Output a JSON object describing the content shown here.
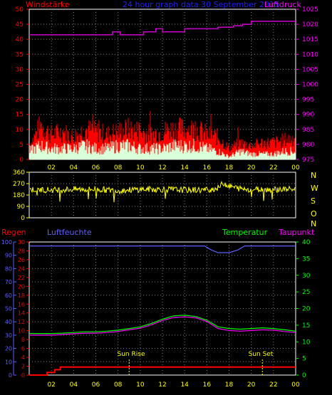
{
  "header": {
    "windstaerke_label": "Windstärke",
    "title": "24 hour graph data   30 September 2015",
    "luftdruck_label": "Luftdruck"
  },
  "colors": {
    "bg": "#000000",
    "frame": "#ffffff",
    "grid": "#808080",
    "wind_axis": "#ff0000",
    "pressure_axis": "#ff00ff",
    "pressure_line": "#cc00cc",
    "title": "#2020ff",
    "gust": "#ff0000",
    "avg_wind": "#d8ffd8",
    "direction": "#ffff00",
    "rain": "#ff0000",
    "humidity": "#6060ff",
    "temperature": "#00ff00",
    "dewpoint": "#ff00ff",
    "tick_labels": "#ffff00",
    "compass": "#ffff00",
    "sun_markers": "#ffff00"
  },
  "x_tick_labels": [
    "02",
    "04",
    "06",
    "08",
    "10",
    "12",
    "14",
    "16",
    "18",
    "20",
    "22",
    "00"
  ],
  "chart_data": [
    {
      "type": "line",
      "name": "wind-pressure",
      "x_range_hours": [
        0,
        24
      ],
      "x_tick_labels": [
        "02",
        "04",
        "06",
        "08",
        "10",
        "12",
        "14",
        "16",
        "18",
        "20",
        "22",
        "00"
      ],
      "wind_axis": {
        "ylim": [
          0,
          50
        ],
        "ticks": [
          0,
          5,
          10,
          15,
          20,
          25,
          30,
          35,
          40,
          45,
          50
        ]
      },
      "pressure_axis": {
        "ylim": [
          975,
          1025
        ],
        "ticks": [
          975,
          980,
          985,
          990,
          995,
          1000,
          1005,
          1010,
          1015,
          1020,
          1025
        ]
      },
      "series": [
        {
          "name": "Luftdruck",
          "axis": "pressure",
          "x": [
            0,
            7.5,
            7.5,
            8.2,
            8.2,
            10.3,
            10.3,
            11.4,
            11.4,
            12.0,
            12.0,
            14.0,
            14.0,
            17.0,
            17.0,
            18.4,
            18.4,
            19.2,
            19.2,
            20.0,
            20.0,
            24
          ],
          "y": [
            1016.5,
            1016.5,
            1017.5,
            1017.5,
            1016.5,
            1016.5,
            1017.5,
            1017.5,
            1018.5,
            1018.5,
            1017.5,
            1017.5,
            1018.5,
            1018.5,
            1019.0,
            1019.0,
            1019.5,
            1019.5,
            1020.0,
            1020.0,
            1021.0,
            1021.0
          ]
        },
        {
          "name": "gust",
          "axis": "wind",
          "x": [
            0,
            1,
            2,
            3,
            4,
            5,
            6,
            7,
            8,
            9,
            10,
            11,
            12,
            13,
            14,
            15,
            16,
            17,
            18,
            19,
            20,
            21,
            22,
            23,
            24
          ],
          "y": [
            5,
            12,
            9,
            10,
            8,
            11,
            10,
            9,
            10,
            11,
            10,
            9,
            10,
            11,
            11,
            11,
            9,
            8,
            4,
            6,
            5,
            6,
            6,
            7,
            8
          ]
        },
        {
          "name": "avg",
          "axis": "wind",
          "x": [
            0,
            1,
            2,
            3,
            4,
            5,
            6,
            7,
            8,
            9,
            10,
            11,
            12,
            13,
            14,
            15,
            16,
            17,
            18,
            19,
            20,
            21,
            22,
            23,
            24
          ],
          "y": [
            3,
            5,
            4,
            4,
            4,
            5,
            4,
            4,
            5,
            5,
            4,
            4,
            4,
            5,
            5,
            5,
            4,
            3,
            1,
            3,
            2,
            2,
            2,
            3,
            3
          ]
        }
      ]
    },
    {
      "type": "line",
      "name": "wind-direction",
      "x_range_hours": [
        0,
        24
      ],
      "ylim": [
        0,
        360
      ],
      "y_ticks": [
        0,
        90,
        180,
        270,
        360
      ],
      "compass_labels": [
        "N",
        "W",
        "S",
        "O",
        "N"
      ],
      "series": [
        {
          "name": "direction",
          "x": [
            0,
            2,
            4,
            6,
            8,
            10,
            12,
            14,
            16,
            17,
            17.5,
            18,
            19,
            20,
            22,
            24
          ],
          "y": [
            225,
            220,
            225,
            225,
            215,
            225,
            225,
            220,
            220,
            235,
            275,
            250,
            230,
            225,
            225,
            225
          ]
        }
      ]
    },
    {
      "type": "line",
      "name": "rain-humidity-temperature",
      "x_range_hours": [
        0,
        24
      ],
      "left_label": "Regen",
      "humidity_label": "Luftfeuchte",
      "temperature_label": "Temperatur",
      "dewpoint_label": "Taupunkt",
      "rain_axis": {
        "ylim": [
          0,
          30
        ],
        "ticks": [
          0,
          2,
          4,
          6,
          8,
          10,
          12,
          14,
          16,
          18,
          20,
          22,
          24,
          26,
          28,
          30
        ]
      },
      "humidity_axis": {
        "ylim": [
          0,
          100
        ],
        "ticks": [
          0,
          10,
          20,
          30,
          40,
          50,
          60,
          70,
          80,
          90,
          100
        ]
      },
      "temperature_axis": {
        "ylim": [
          0,
          40
        ],
        "ticks": [
          0,
          5,
          10,
          15,
          20,
          25,
          30,
          35,
          40
        ]
      },
      "series": [
        {
          "name": "Luftfeuchte",
          "axis": "humidity",
          "x": [
            0,
            15.8,
            16.4,
            17.0,
            18.0,
            18.8,
            19.4,
            24
          ],
          "y": [
            97,
            97,
            94,
            92,
            92,
            94,
            97,
            97
          ]
        },
        {
          "name": "Temperatur",
          "axis": "temperature",
          "x": [
            0,
            1,
            2,
            3,
            4,
            5,
            6,
            7,
            8,
            9,
            10,
            11,
            12,
            13,
            14,
            15,
            16,
            17,
            18,
            19,
            20,
            21,
            22,
            23,
            24
          ],
          "y": [
            12.5,
            12.5,
            12.5,
            12.6,
            12.8,
            13.0,
            13.0,
            13.2,
            13.5,
            14.0,
            14.5,
            15.5,
            16.8,
            17.8,
            18.0,
            17.6,
            16.5,
            14.5,
            14.0,
            13.8,
            14.0,
            14.2,
            14.0,
            13.6,
            13.2
          ]
        },
        {
          "name": "Taupunkt",
          "axis": "temperature",
          "x": [
            0,
            1,
            2,
            3,
            4,
            5,
            6,
            7,
            8,
            9,
            10,
            11,
            12,
            13,
            14,
            15,
            16,
            17,
            18,
            19,
            20,
            21,
            22,
            23,
            24
          ],
          "y": [
            12.0,
            12.0,
            12.0,
            12.2,
            12.4,
            12.6,
            12.6,
            12.8,
            13.1,
            13.6,
            14.1,
            15.1,
            16.4,
            17.3,
            17.5,
            17.2,
            16.1,
            14.0,
            13.4,
            13.2,
            13.4,
            13.6,
            13.5,
            13.1,
            12.8
          ]
        },
        {
          "name": "Regen",
          "axis": "rain",
          "x": [
            0,
            1.6,
            1.6,
            2.3,
            2.3,
            2.8,
            2.8,
            24
          ],
          "y": [
            0,
            0,
            0.6,
            0.6,
            1.2,
            1.2,
            1.8,
            1.8
          ]
        }
      ],
      "annotations": [
        {
          "label": "Sun Rise",
          "x_hour": 9.0
        },
        {
          "label": "Sun Set",
          "x_hour": 21.0
        }
      ]
    }
  ]
}
